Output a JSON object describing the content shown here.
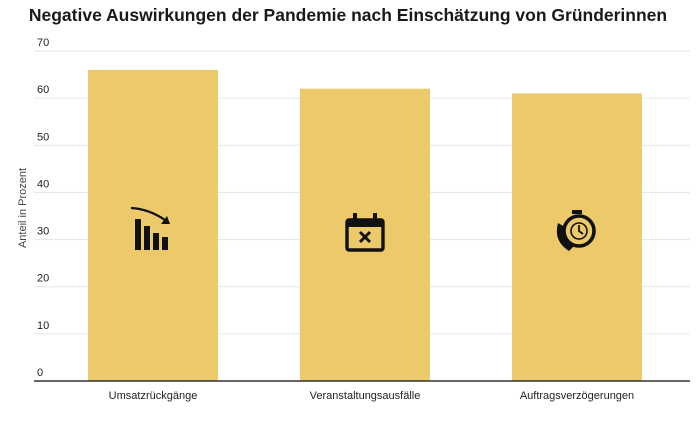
{
  "chart_data": {
    "type": "bar",
    "title": "Negative Auswirkungen der Pandemie nach Einschätzung von Gründerinnen",
    "xlabel": "",
    "ylabel": "Anteil in Prozent",
    "ylim": [
      0,
      70
    ],
    "yticks": [
      0,
      10,
      20,
      30,
      40,
      50,
      60,
      70
    ],
    "grid": true,
    "categories": [
      "Umsatzrückgänge",
      "Veranstaltungsausfälle",
      "Auftragsverzögerungen"
    ],
    "values": [
      66,
      62,
      61
    ],
    "bar_color": "#ECC96A",
    "icons": [
      "declining-bar-chart-icon",
      "calendar-cancel-icon",
      "clock-phone-icon"
    ]
  }
}
